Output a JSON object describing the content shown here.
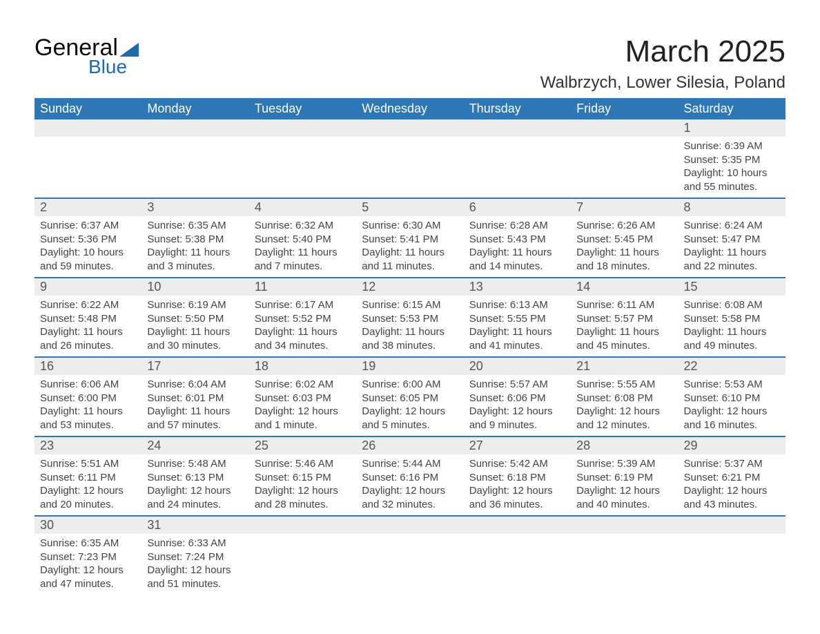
{
  "logo": {
    "word1": "General",
    "word2": "Blue"
  },
  "title": "March 2025",
  "location": "Walbrzych, Lower Silesia, Poland",
  "colors": {
    "header_bg": "#2d77b6",
    "header_text": "#ffffff",
    "row_divider": "#2d77b6",
    "daynum_bg": "#ededed",
    "text": "#444444",
    "logo_accent": "#1f6bb0"
  },
  "font": {
    "family": "Arial",
    "title_size_pt": 33,
    "location_size_pt": 18,
    "header_size_pt": 14,
    "daynum_size_pt": 14,
    "body_size_pt": 11
  },
  "calendar": {
    "type": "table",
    "columns": [
      "Sunday",
      "Monday",
      "Tuesday",
      "Wednesday",
      "Thursday",
      "Friday",
      "Saturday"
    ],
    "weeks": [
      [
        {
          "n": "",
          "sunrise": "",
          "sunset": "",
          "daylight": ""
        },
        {
          "n": "",
          "sunrise": "",
          "sunset": "",
          "daylight": ""
        },
        {
          "n": "",
          "sunrise": "",
          "sunset": "",
          "daylight": ""
        },
        {
          "n": "",
          "sunrise": "",
          "sunset": "",
          "daylight": ""
        },
        {
          "n": "",
          "sunrise": "",
          "sunset": "",
          "daylight": ""
        },
        {
          "n": "",
          "sunrise": "",
          "sunset": "",
          "daylight": ""
        },
        {
          "n": "1",
          "sunrise": "Sunrise: 6:39 AM",
          "sunset": "Sunset: 5:35 PM",
          "daylight": "Daylight: 10 hours and 55 minutes."
        }
      ],
      [
        {
          "n": "2",
          "sunrise": "Sunrise: 6:37 AM",
          "sunset": "Sunset: 5:36 PM",
          "daylight": "Daylight: 10 hours and 59 minutes."
        },
        {
          "n": "3",
          "sunrise": "Sunrise: 6:35 AM",
          "sunset": "Sunset: 5:38 PM",
          "daylight": "Daylight: 11 hours and 3 minutes."
        },
        {
          "n": "4",
          "sunrise": "Sunrise: 6:32 AM",
          "sunset": "Sunset: 5:40 PM",
          "daylight": "Daylight: 11 hours and 7 minutes."
        },
        {
          "n": "5",
          "sunrise": "Sunrise: 6:30 AM",
          "sunset": "Sunset: 5:41 PM",
          "daylight": "Daylight: 11 hours and 11 minutes."
        },
        {
          "n": "6",
          "sunrise": "Sunrise: 6:28 AM",
          "sunset": "Sunset: 5:43 PM",
          "daylight": "Daylight: 11 hours and 14 minutes."
        },
        {
          "n": "7",
          "sunrise": "Sunrise: 6:26 AM",
          "sunset": "Sunset: 5:45 PM",
          "daylight": "Daylight: 11 hours and 18 minutes."
        },
        {
          "n": "8",
          "sunrise": "Sunrise: 6:24 AM",
          "sunset": "Sunset: 5:47 PM",
          "daylight": "Daylight: 11 hours and 22 minutes."
        }
      ],
      [
        {
          "n": "9",
          "sunrise": "Sunrise: 6:22 AM",
          "sunset": "Sunset: 5:48 PM",
          "daylight": "Daylight: 11 hours and 26 minutes."
        },
        {
          "n": "10",
          "sunrise": "Sunrise: 6:19 AM",
          "sunset": "Sunset: 5:50 PM",
          "daylight": "Daylight: 11 hours and 30 minutes."
        },
        {
          "n": "11",
          "sunrise": "Sunrise: 6:17 AM",
          "sunset": "Sunset: 5:52 PM",
          "daylight": "Daylight: 11 hours and 34 minutes."
        },
        {
          "n": "12",
          "sunrise": "Sunrise: 6:15 AM",
          "sunset": "Sunset: 5:53 PM",
          "daylight": "Daylight: 11 hours and 38 minutes."
        },
        {
          "n": "13",
          "sunrise": "Sunrise: 6:13 AM",
          "sunset": "Sunset: 5:55 PM",
          "daylight": "Daylight: 11 hours and 41 minutes."
        },
        {
          "n": "14",
          "sunrise": "Sunrise: 6:11 AM",
          "sunset": "Sunset: 5:57 PM",
          "daylight": "Daylight: 11 hours and 45 minutes."
        },
        {
          "n": "15",
          "sunrise": "Sunrise: 6:08 AM",
          "sunset": "Sunset: 5:58 PM",
          "daylight": "Daylight: 11 hours and 49 minutes."
        }
      ],
      [
        {
          "n": "16",
          "sunrise": "Sunrise: 6:06 AM",
          "sunset": "Sunset: 6:00 PM",
          "daylight": "Daylight: 11 hours and 53 minutes."
        },
        {
          "n": "17",
          "sunrise": "Sunrise: 6:04 AM",
          "sunset": "Sunset: 6:01 PM",
          "daylight": "Daylight: 11 hours and 57 minutes."
        },
        {
          "n": "18",
          "sunrise": "Sunrise: 6:02 AM",
          "sunset": "Sunset: 6:03 PM",
          "daylight": "Daylight: 12 hours and 1 minute."
        },
        {
          "n": "19",
          "sunrise": "Sunrise: 6:00 AM",
          "sunset": "Sunset: 6:05 PM",
          "daylight": "Daylight: 12 hours and 5 minutes."
        },
        {
          "n": "20",
          "sunrise": "Sunrise: 5:57 AM",
          "sunset": "Sunset: 6:06 PM",
          "daylight": "Daylight: 12 hours and 9 minutes."
        },
        {
          "n": "21",
          "sunrise": "Sunrise: 5:55 AM",
          "sunset": "Sunset: 6:08 PM",
          "daylight": "Daylight: 12 hours and 12 minutes."
        },
        {
          "n": "22",
          "sunrise": "Sunrise: 5:53 AM",
          "sunset": "Sunset: 6:10 PM",
          "daylight": "Daylight: 12 hours and 16 minutes."
        }
      ],
      [
        {
          "n": "23",
          "sunrise": "Sunrise: 5:51 AM",
          "sunset": "Sunset: 6:11 PM",
          "daylight": "Daylight: 12 hours and 20 minutes."
        },
        {
          "n": "24",
          "sunrise": "Sunrise: 5:48 AM",
          "sunset": "Sunset: 6:13 PM",
          "daylight": "Daylight: 12 hours and 24 minutes."
        },
        {
          "n": "25",
          "sunrise": "Sunrise: 5:46 AM",
          "sunset": "Sunset: 6:15 PM",
          "daylight": "Daylight: 12 hours and 28 minutes."
        },
        {
          "n": "26",
          "sunrise": "Sunrise: 5:44 AM",
          "sunset": "Sunset: 6:16 PM",
          "daylight": "Daylight: 12 hours and 32 minutes."
        },
        {
          "n": "27",
          "sunrise": "Sunrise: 5:42 AM",
          "sunset": "Sunset: 6:18 PM",
          "daylight": "Daylight: 12 hours and 36 minutes."
        },
        {
          "n": "28",
          "sunrise": "Sunrise: 5:39 AM",
          "sunset": "Sunset: 6:19 PM",
          "daylight": "Daylight: 12 hours and 40 minutes."
        },
        {
          "n": "29",
          "sunrise": "Sunrise: 5:37 AM",
          "sunset": "Sunset: 6:21 PM",
          "daylight": "Daylight: 12 hours and 43 minutes."
        }
      ],
      [
        {
          "n": "30",
          "sunrise": "Sunrise: 6:35 AM",
          "sunset": "Sunset: 7:23 PM",
          "daylight": "Daylight: 12 hours and 47 minutes."
        },
        {
          "n": "31",
          "sunrise": "Sunrise: 6:33 AM",
          "sunset": "Sunset: 7:24 PM",
          "daylight": "Daylight: 12 hours and 51 minutes."
        },
        {
          "n": "",
          "sunrise": "",
          "sunset": "",
          "daylight": ""
        },
        {
          "n": "",
          "sunrise": "",
          "sunset": "",
          "daylight": ""
        },
        {
          "n": "",
          "sunrise": "",
          "sunset": "",
          "daylight": ""
        },
        {
          "n": "",
          "sunrise": "",
          "sunset": "",
          "daylight": ""
        },
        {
          "n": "",
          "sunrise": "",
          "sunset": "",
          "daylight": ""
        }
      ]
    ]
  }
}
